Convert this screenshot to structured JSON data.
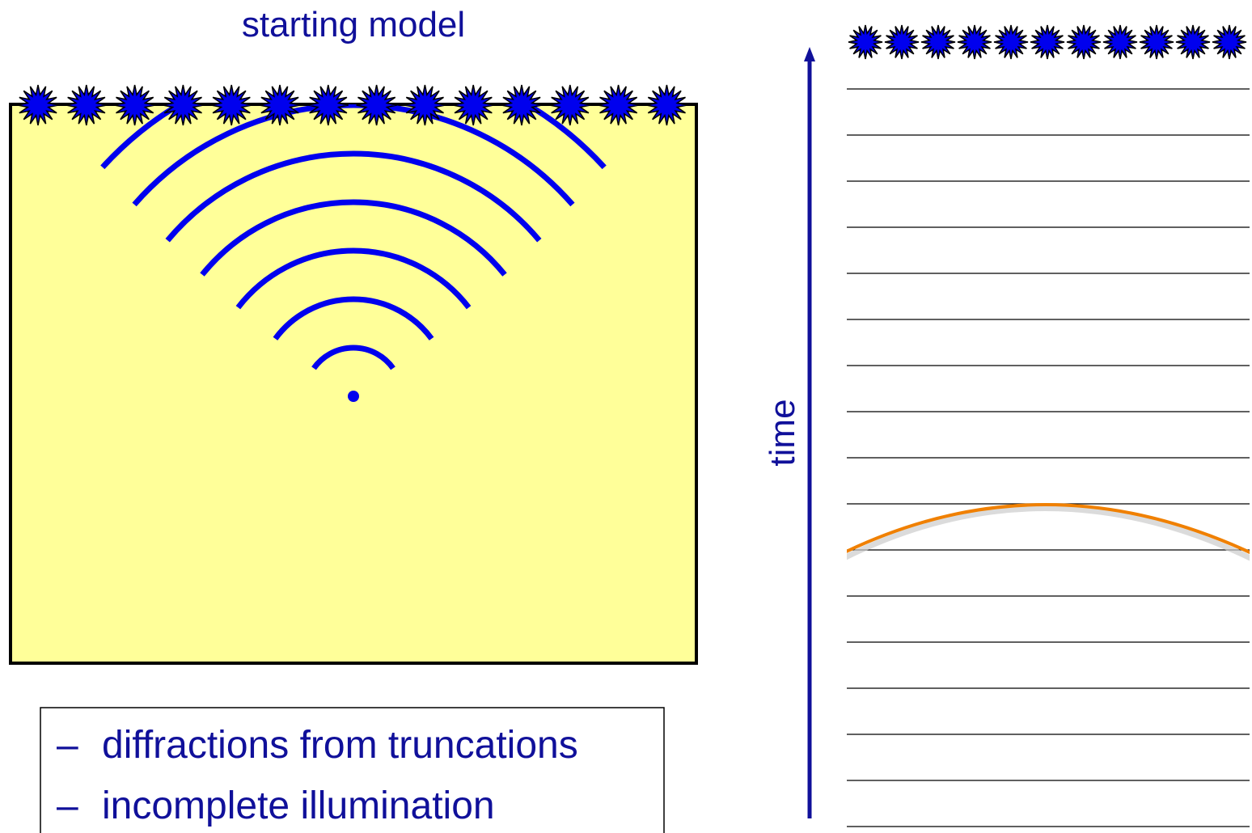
{
  "title": "starting model",
  "axis_label": "time",
  "bullets": [
    {
      "marker": "–",
      "text": "diffractions from truncations"
    },
    {
      "marker": "–",
      "text": "incomplete illumination"
    }
  ]
}
